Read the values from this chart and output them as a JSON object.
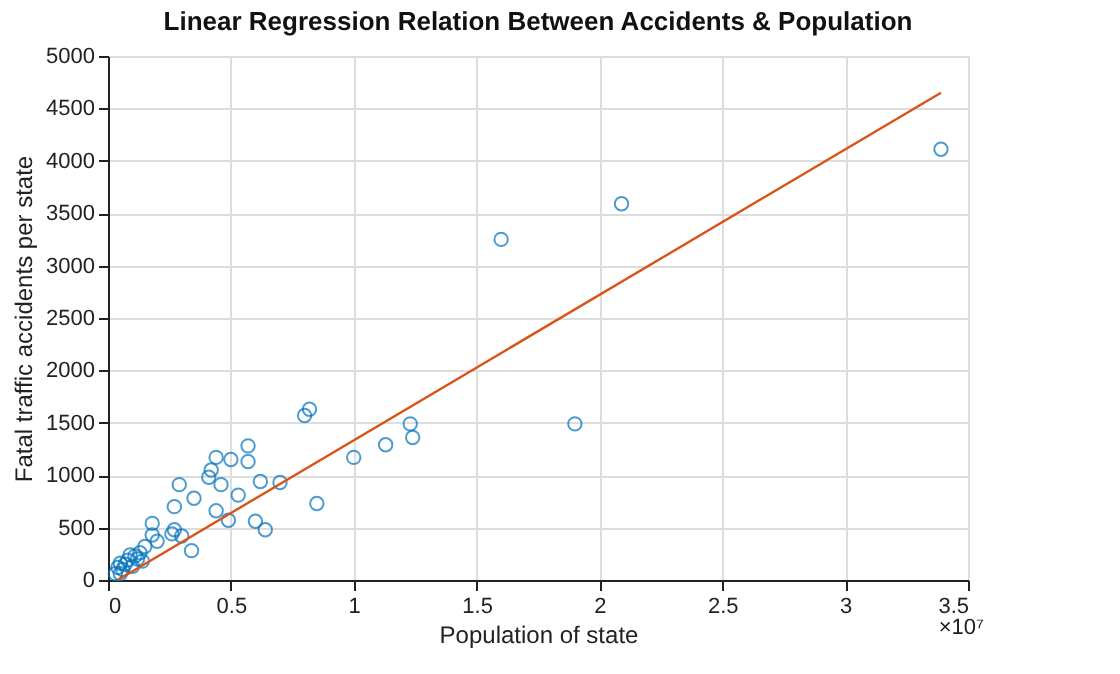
{
  "chart_data": {
    "type": "scatter",
    "title": "Linear Regression Relation Between Accidents & Population",
    "xlabel": "Population of state",
    "ylabel": "Fatal traffic accidents per state",
    "annotations": [
      "×10⁷"
    ],
    "xlim": [
      0,
      3.5
    ],
    "xticks": [
      0,
      0.5,
      1,
      1.5,
      2,
      2.5,
      3,
      3.5
    ],
    "ylim": [
      0,
      5000
    ],
    "yticks": [
      0,
      500,
      1000,
      1500,
      2000,
      2500,
      3000,
      3500,
      4000,
      4500,
      5000
    ],
    "grid": true,
    "series": [
      {
        "color": "#0072bd",
        "marker": "circle",
        "x": [
          3.39,
          2.09,
          1.6,
          1.9,
          1.23,
          1.24,
          1.13,
          1.0,
          0.82,
          0.8,
          0.85,
          0.7,
          0.62,
          0.6,
          0.64,
          0.57,
          0.57,
          0.53,
          0.5,
          0.49,
          0.46,
          0.44,
          0.42,
          0.41,
          0.44,
          0.35,
          0.34,
          0.3,
          0.29,
          0.27,
          0.27,
          0.26,
          0.2,
          0.18,
          0.18,
          0.15,
          0.13,
          0.11,
          0.1,
          0.09,
          0.08,
          0.07,
          0.06,
          0.05,
          0.05,
          0.04,
          0.03,
          0.14,
          0.12
        ],
        "values": [
          4110,
          3590,
          3250,
          1490,
          1490,
          1360,
          1290,
          1170,
          1630,
          1570,
          730,
          930,
          940,
          560,
          480,
          1280,
          1130,
          810,
          1150,
          570,
          910,
          1170,
          1050,
          980,
          660,
          780,
          280,
          420,
          910,
          700,
          480,
          440,
          370,
          540,
          430,
          320,
          260,
          230,
          130,
          240,
          190,
          150,
          100,
          60,
          160,
          120,
          60,
          180,
          200
        ]
      },
      {
        "type": "line",
        "color": "#d95319",
        "line_style": "solid",
        "x": [
          0.04,
          3.39
        ],
        "values": [
          0,
          4650
        ]
      }
    ]
  }
}
